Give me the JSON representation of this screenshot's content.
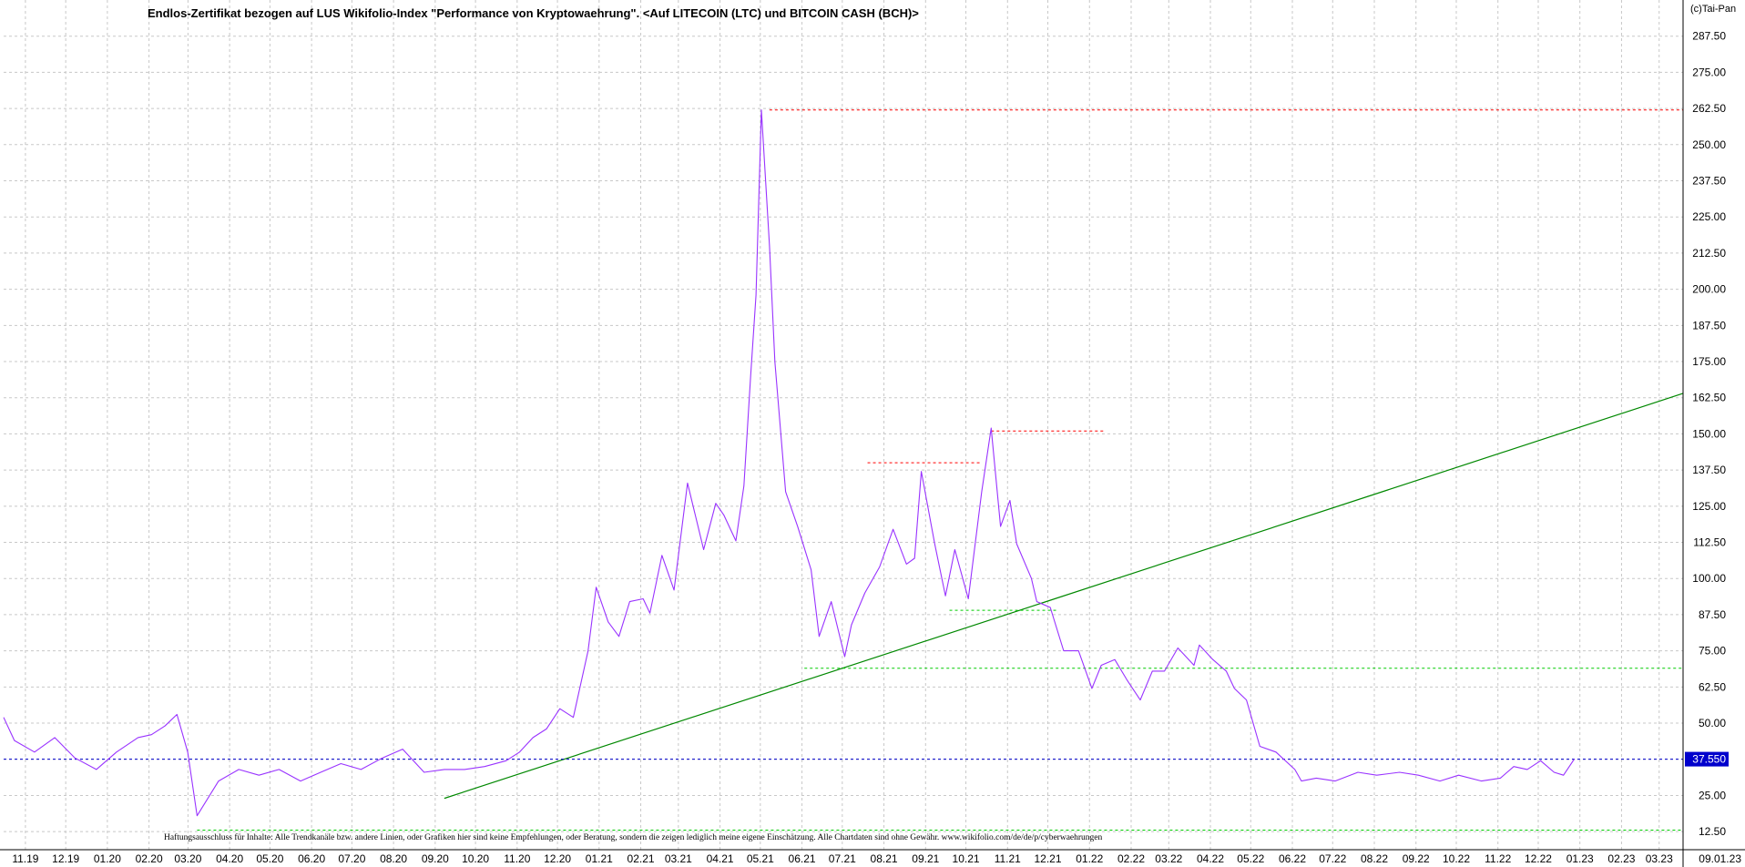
{
  "chart_data": {
    "type": "line",
    "title": "Endlos-Zertifikat bezogen auf LUS Wikifolio-Index \"Performance von Kryptowaehrung\". <Auf LITECOIN (LTC) und BITCOIN CASH (BCH)>",
    "copyright": "(c)Tai-Pan",
    "disclaimer": "Haftungsausschluss für Inhalte: Alle Trendkanäle bzw. andere Linien, oder Grafiken hier sind keine Empfehlungen, oder Beratung, sondern die zeigen lediglich meine eigene Einschätzung. Alle Chartdaten sind ohne Gewähr. www.wikifolio.com/de/de/p/cyberwaehrungen",
    "last_value_label": "37.550",
    "last_value": 37.55,
    "ylim": [
      6.25,
      300
    ],
    "y_ticks": [
      "287.50",
      "275.00",
      "262.50",
      "250.00",
      "237.50",
      "225.00",
      "212.50",
      "200.00",
      "187.50",
      "175.00",
      "162.50",
      "150.00",
      "137.50",
      "125.00",
      "112.50",
      "100.00",
      "87.50",
      "75.00",
      "62.50",
      "50.00",
      "37.50",
      "25.00",
      "12.50"
    ],
    "y_tick_values": [
      287.5,
      275,
      262.5,
      250,
      237.5,
      225,
      212.5,
      200,
      187.5,
      175,
      162.5,
      150,
      137.5,
      125,
      112.5,
      100,
      87.5,
      75,
      62.5,
      50,
      37.5,
      25,
      12.5
    ],
    "x_ticks": [
      "11.19",
      "12.19",
      "01.20",
      "02.20",
      "03.20",
      "04.20",
      "05.20",
      "06.20",
      "07.20",
      "08.20",
      "09.20",
      "10.20",
      "11.20",
      "12.20",
      "01.21",
      "02.21",
      "03.21",
      "04.21",
      "05.21",
      "06.21",
      "07.21",
      "08.21",
      "09.21",
      "10.21",
      "11.21",
      "12.21",
      "01.22",
      "02.22",
      "03.22",
      "04.22",
      "05.22",
      "06.22",
      "07.22",
      "08.22",
      "09.22",
      "10.22",
      "11.22",
      "12.22",
      "01.23",
      "02.23",
      "03.23"
    ],
    "x_last_label": "09.01.23",
    "x_range": [
      "2019-10-28",
      "2023-03-31"
    ],
    "series": [
      {
        "color": "#9933ff",
        "x": [
          "2019-10-28",
          "2019-11-05",
          "2019-11-20",
          "2019-12-05",
          "2019-12-20",
          "2020-01-05",
          "2020-01-20",
          "2020-02-05",
          "2020-02-15",
          "2020-02-25",
          "2020-03-05",
          "2020-03-13",
          "2020-03-20",
          "2020-04-05",
          "2020-04-20",
          "2020-05-05",
          "2020-05-20",
          "2020-06-05",
          "2020-06-20",
          "2020-07-05",
          "2020-07-20",
          "2020-08-05",
          "2020-08-20",
          "2020-09-05",
          "2020-09-20",
          "2020-10-05",
          "2020-10-20",
          "2020-11-05",
          "2020-11-15",
          "2020-11-25",
          "2020-12-05",
          "2020-12-15",
          "2020-12-25",
          "2021-01-05",
          "2021-01-11",
          "2021-01-20",
          "2021-01-28",
          "2021-02-05",
          "2021-02-15",
          "2021-02-20",
          "2021-03-01",
          "2021-03-10",
          "2021-03-20",
          "2021-04-01",
          "2021-04-10",
          "2021-04-16",
          "2021-04-25",
          "2021-05-01",
          "2021-05-06",
          "2021-05-10",
          "2021-05-14",
          "2021-05-20",
          "2021-05-24",
          "2021-06-01",
          "2021-06-10",
          "2021-06-20",
          "2021-06-26",
          "2021-07-05",
          "2021-07-15",
          "2021-07-20",
          "2021-07-30",
          "2021-08-10",
          "2021-08-20",
          "2021-08-30",
          "2021-09-05",
          "2021-09-10",
          "2021-09-20",
          "2021-09-28",
          "2021-10-05",
          "2021-10-15",
          "2021-10-25",
          "2021-11-01",
          "2021-11-08",
          "2021-11-15",
          "2021-11-20",
          "2021-12-01",
          "2021-12-05",
          "2021-12-15",
          "2021-12-25",
          "2022-01-05",
          "2022-01-15",
          "2022-01-22",
          "2022-02-01",
          "2022-02-10",
          "2022-02-20",
          "2022-03-01",
          "2022-03-10",
          "2022-03-20",
          "2022-04-01",
          "2022-04-05",
          "2022-04-15",
          "2022-04-25",
          "2022-05-01",
          "2022-05-10",
          "2022-05-20",
          "2022-06-01",
          "2022-06-15",
          "2022-06-20",
          "2022-07-01",
          "2022-07-15",
          "2022-08-01",
          "2022-08-15",
          "2022-09-01",
          "2022-09-15",
          "2022-10-01",
          "2022-10-15",
          "2022-11-01",
          "2022-11-15",
          "2022-11-25",
          "2022-12-05",
          "2022-12-15",
          "2022-12-25",
          "2023-01-01",
          "2023-01-09"
        ],
        "y": [
          52,
          44,
          40,
          45,
          38,
          34,
          40,
          45,
          46,
          49,
          53,
          40,
          18,
          30,
          34,
          32,
          34,
          30,
          33,
          36,
          34,
          38,
          41,
          33,
          34,
          34,
          35,
          37,
          40,
          45,
          48,
          55,
          52,
          75,
          97,
          85,
          80,
          92,
          93,
          88,
          108,
          96,
          133,
          110,
          126,
          122,
          113,
          132,
          170,
          198,
          262,
          215,
          175,
          130,
          118,
          103,
          80,
          92,
          73,
          84,
          95,
          104,
          117,
          105,
          107,
          137,
          112,
          94,
          110,
          93,
          130,
          152,
          118,
          127,
          112,
          100,
          92,
          90,
          75,
          75,
          62,
          70,
          72,
          65,
          58,
          68,
          68,
          76,
          70,
          77,
          72,
          68,
          62,
          58,
          42,
          40,
          34,
          30,
          31,
          30,
          33,
          32,
          33,
          32,
          30,
          32,
          30,
          31,
          35,
          34,
          37,
          33,
          32,
          37.55
        ]
      }
    ],
    "annotations": {
      "trendline": {
        "color": "#008800",
        "x1": "2020-09-20",
        "y1": 24,
        "x2": "2023-03-31",
        "y2": 164
      },
      "resistance_lines": [
        {
          "color": "#ff0000",
          "x1": "2021-05-20",
          "x2": "2023-03-31",
          "y": 262
        },
        {
          "color": "#ff0000",
          "x1": "2021-08-01",
          "x2": "2021-10-25",
          "y": 140
        },
        {
          "color": "#ff0000",
          "x1": "2021-11-01",
          "x2": "2022-01-25",
          "y": 151
        }
      ],
      "support_lines": [
        {
          "color": "#00cc00",
          "x1": "2021-06-15",
          "x2": "2023-03-31",
          "y": 69
        },
        {
          "color": "#00cc00",
          "x1": "2021-10-01",
          "x2": "2021-12-20",
          "y": 89
        },
        {
          "color": "#00cc00",
          "x1": "2020-03-20",
          "x2": "2023-03-31",
          "y": 13
        }
      ],
      "current_line": {
        "color": "#0000cc",
        "y": 37.55
      }
    },
    "grid": true,
    "colors": {
      "line": "#9933ff",
      "trend": "#008800",
      "resistance": "#ff0000",
      "support": "#00cc00",
      "last_value_bg": "#0000cc"
    }
  }
}
